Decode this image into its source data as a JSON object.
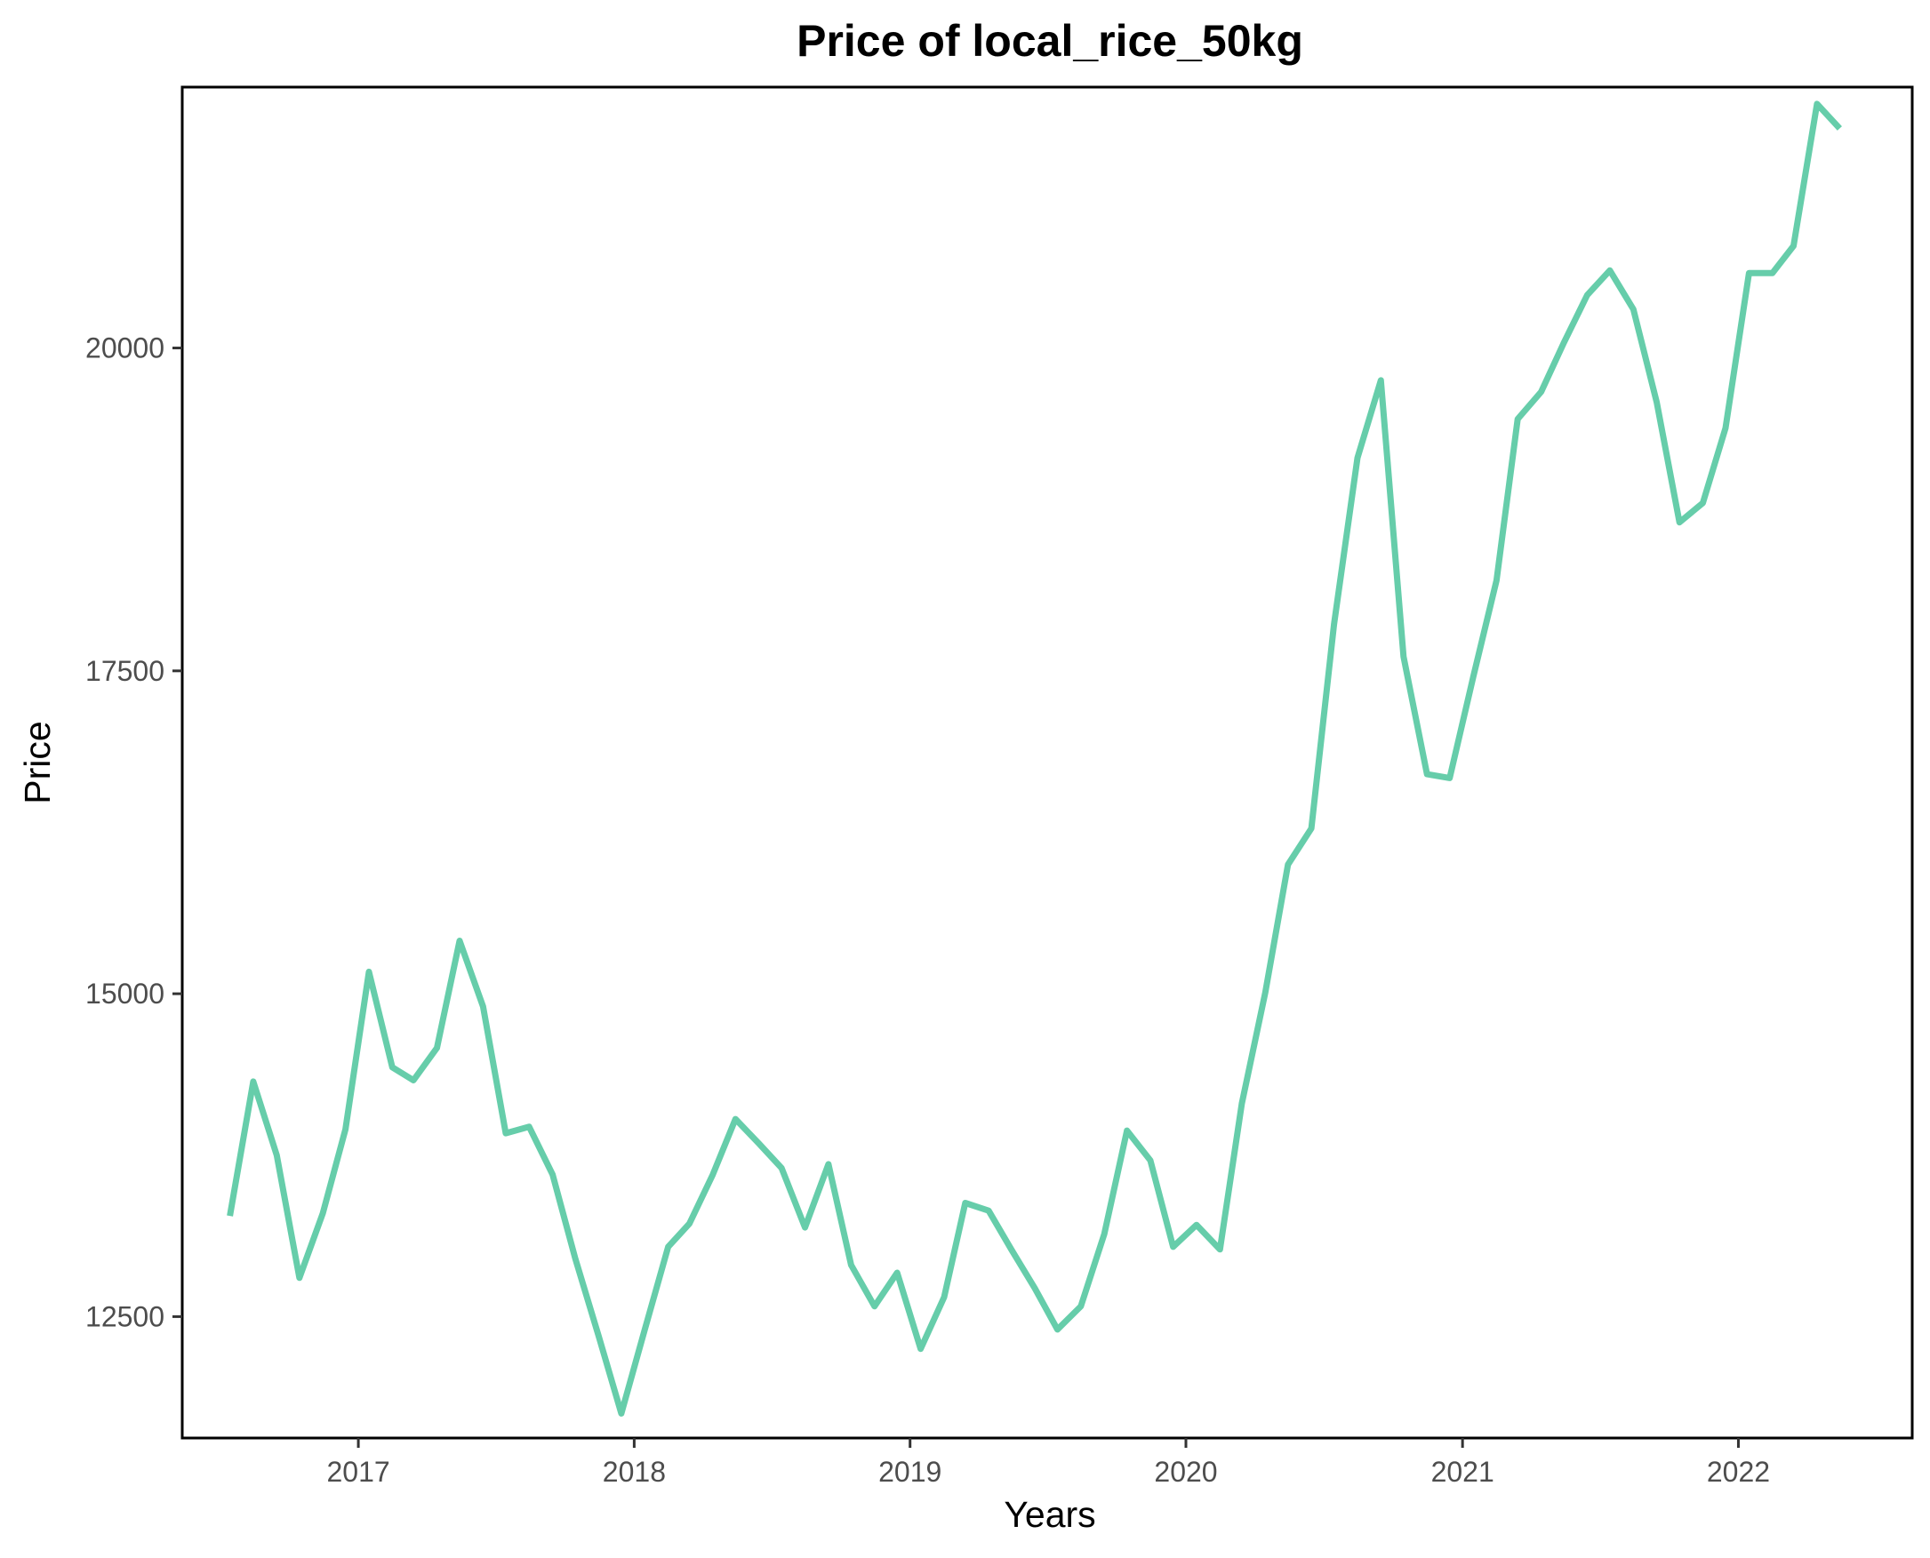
{
  "chart_data": {
    "type": "line",
    "title": "Price of local_rice_50kg",
    "xlabel": "Years",
    "ylabel": "Price",
    "xlim": [
      "2016-05-13",
      "2022-08-19"
    ],
    "ylim": [
      11560,
      22020
    ],
    "x_ticks": [
      "2017",
      "2018",
      "2019",
      "2020",
      "2021",
      "2022"
    ],
    "y_ticks": [
      12500,
      15000,
      17500,
      20000
    ],
    "grid": false,
    "legend": "none",
    "line_color": "#66cdaa",
    "series": [
      {
        "x": [
          "2016-07-15",
          "2016-08-15",
          "2016-09-15",
          "2016-10-15",
          "2016-11-15",
          "2016-12-15",
          "2017-01-15",
          "2017-02-15",
          "2017-03-15",
          "2017-04-15",
          "2017-05-15",
          "2017-06-15",
          "2017-07-15",
          "2017-08-15",
          "2017-09-15",
          "2017-10-15",
          "2017-11-15",
          "2017-12-15",
          "2018-01-15",
          "2018-02-15",
          "2018-03-15",
          "2018-04-15",
          "2018-05-15",
          "2018-06-15",
          "2018-07-15",
          "2018-08-15",
          "2018-09-15",
          "2018-10-15",
          "2018-11-15",
          "2018-12-15",
          "2019-01-15",
          "2019-02-15",
          "2019-03-15",
          "2019-04-15",
          "2019-05-15",
          "2019-06-15",
          "2019-07-15",
          "2019-08-15",
          "2019-09-15",
          "2019-10-15",
          "2019-11-15",
          "2019-12-15",
          "2020-01-15",
          "2020-02-15",
          "2020-03-15",
          "2020-04-15",
          "2020-05-15",
          "2020-06-15",
          "2020-07-15",
          "2020-08-15",
          "2020-09-15",
          "2020-10-15",
          "2020-11-15",
          "2020-12-15",
          "2021-01-15",
          "2021-02-15",
          "2021-03-15",
          "2021-04-15",
          "2021-05-15",
          "2021-06-15",
          "2021-07-15",
          "2021-08-15",
          "2021-09-15",
          "2021-10-15",
          "2021-11-15",
          "2021-12-15",
          "2022-01-15",
          "2022-02-15",
          "2022-03-15",
          "2022-04-15",
          "2022-05-15"
        ],
        "values": [
          13280,
          14320,
          13750,
          12800,
          13300,
          13950,
          15170,
          14430,
          14330,
          14580,
          15410,
          14900,
          13920,
          13970,
          13600,
          12950,
          12350,
          11750,
          12400,
          13040,
          13220,
          13600,
          14030,
          13840,
          13650,
          13190,
          13680,
          12900,
          12580,
          12840,
          12250,
          12650,
          13380,
          13320,
          13020,
          12720,
          12400,
          12580,
          13140,
          13940,
          13710,
          13040,
          13210,
          13020,
          14150,
          15010,
          16000,
          16280,
          17860,
          19150,
          19750,
          17610,
          16700,
          16670,
          17450,
          18200,
          19450,
          19660,
          20040,
          20410,
          20600,
          20300,
          19580,
          18650,
          18800,
          19380,
          20580,
          20580,
          20790,
          21890,
          21700
        ]
      }
    ]
  }
}
